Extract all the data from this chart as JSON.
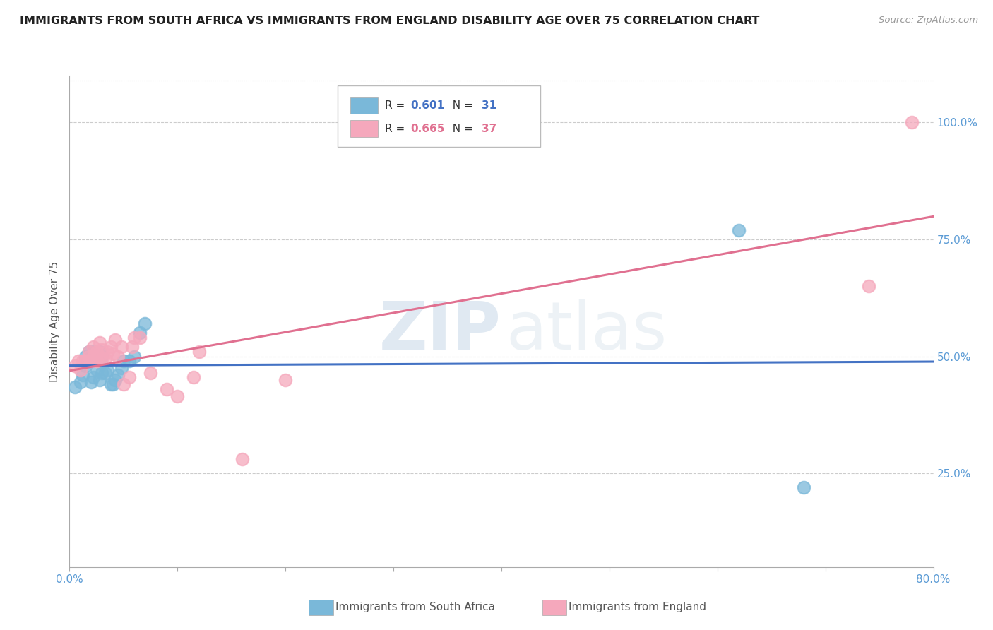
{
  "title": "IMMIGRANTS FROM SOUTH AFRICA VS IMMIGRANTS FROM ENGLAND DISABILITY AGE OVER 75 CORRELATION CHART",
  "source": "Source: ZipAtlas.com",
  "ylabel": "Disability Age Over 75",
  "legend_blue_r": "0.601",
  "legend_blue_n": "31",
  "legend_pink_r": "0.665",
  "legend_pink_n": "37",
  "legend_label_blue": "Immigrants from South Africa",
  "legend_label_pink": "Immigrants from England",
  "xlim": [
    0.0,
    0.8
  ],
  "ylim": [
    0.05,
    1.1
  ],
  "yticks": [
    0.25,
    0.5,
    0.75,
    1.0
  ],
  "ytick_labels": [
    "25.0%",
    "50.0%",
    "75.0%",
    "100.0%"
  ],
  "xtick_left_label": "0.0%",
  "xtick_right_label": "80.0%",
  "color_blue": "#7ab8d9",
  "color_pink": "#f5a8bc",
  "line_blue": "#4472c4",
  "line_pink": "#e07090",
  "background_color": "#ffffff",
  "watermark_zip": "ZIP",
  "watermark_atlas": "atlas",
  "blue_x": [
    0.005,
    0.01,
    0.012,
    0.015,
    0.015,
    0.018,
    0.018,
    0.02,
    0.02,
    0.022,
    0.022,
    0.025,
    0.025,
    0.028,
    0.028,
    0.03,
    0.03,
    0.033,
    0.035,
    0.038,
    0.04,
    0.042,
    0.045,
    0.048,
    0.05,
    0.055,
    0.06,
    0.065,
    0.07,
    0.62,
    0.68
  ],
  "blue_y": [
    0.435,
    0.445,
    0.46,
    0.48,
    0.5,
    0.49,
    0.51,
    0.445,
    0.5,
    0.455,
    0.51,
    0.47,
    0.5,
    0.45,
    0.51,
    0.465,
    0.5,
    0.465,
    0.47,
    0.44,
    0.44,
    0.45,
    0.46,
    0.475,
    0.49,
    0.49,
    0.5,
    0.55,
    0.57,
    0.77,
    0.22
  ],
  "pink_x": [
    0.005,
    0.008,
    0.01,
    0.012,
    0.015,
    0.018,
    0.018,
    0.02,
    0.022,
    0.022,
    0.025,
    0.025,
    0.028,
    0.028,
    0.03,
    0.03,
    0.033,
    0.035,
    0.038,
    0.04,
    0.042,
    0.045,
    0.048,
    0.05,
    0.055,
    0.058,
    0.06,
    0.065,
    0.075,
    0.09,
    0.1,
    0.115,
    0.12,
    0.16,
    0.2,
    0.74,
    0.78
  ],
  "pink_y": [
    0.48,
    0.49,
    0.47,
    0.49,
    0.49,
    0.5,
    0.51,
    0.49,
    0.5,
    0.52,
    0.49,
    0.51,
    0.5,
    0.53,
    0.495,
    0.515,
    0.495,
    0.51,
    0.52,
    0.505,
    0.535,
    0.5,
    0.52,
    0.44,
    0.455,
    0.52,
    0.54,
    0.54,
    0.465,
    0.43,
    0.415,
    0.455,
    0.51,
    0.28,
    0.45,
    0.65,
    1.0
  ]
}
